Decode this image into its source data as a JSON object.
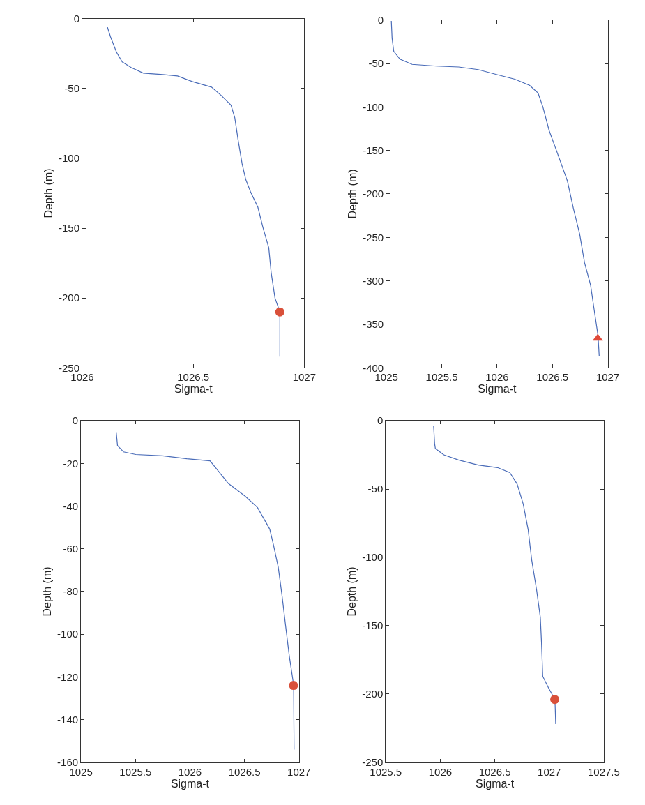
{
  "chart_data": [
    {
      "type": "line",
      "xlabel": "Sigma-t",
      "ylabel": "Depth (m)",
      "xlim": [
        1026,
        1027
      ],
      "xticks": [
        1026,
        1026.5,
        1027
      ],
      "ylim": [
        -250,
        0
      ],
      "yticks": [
        -250,
        -200,
        -150,
        -100,
        -50,
        0
      ],
      "series": [
        {
          "color": "#4a6cb8",
          "x": [
            1026.113,
            1026.127,
            1026.154,
            1026.18,
            1026.22,
            1026.275,
            1026.363,
            1026.429,
            1026.495,
            1026.582,
            1026.626,
            1026.67,
            1026.687,
            1026.703,
            1026.72,
            1026.736,
            1026.758,
            1026.791,
            1026.813,
            1026.84,
            1026.851,
            1026.868,
            1026.89,
            1026.89
          ],
          "values": [
            -6,
            -13,
            -24,
            -31,
            -35,
            -39,
            -40,
            -41,
            -45,
            -49,
            -55,
            -62,
            -71,
            -88,
            -104,
            -115,
            -124,
            -135,
            -149,
            -164,
            -182,
            -200,
            -210,
            -242
          ]
        },
        {
          "type": "scatter",
          "marker": "circle",
          "color": "#d9503a",
          "x": [
            1026.89
          ],
          "values": [
            -210
          ]
        }
      ]
    },
    {
      "type": "line",
      "xlabel": "Sigma-t",
      "ylabel": "Depth (m)",
      "xlim": [
        1025,
        1027
      ],
      "xticks": [
        1025,
        1025.5,
        1026,
        1026.5,
        1027
      ],
      "ylim": [
        -400,
        0
      ],
      "yticks": [
        -400,
        -350,
        -300,
        -250,
        -200,
        -150,
        -100,
        -50,
        0
      ],
      "series": [
        {
          "color": "#4a6cb8",
          "x": [
            1025.044,
            1025.051,
            1025.066,
            1025.122,
            1025.232,
            1025.453,
            1025.652,
            1025.829,
            1026.006,
            1026.16,
            1026.293,
            1026.37,
            1026.414,
            1026.47,
            1026.536,
            1026.635,
            1026.69,
            1026.746,
            1026.79,
            1026.845,
            1026.878,
            1026.912,
            1026.923
          ],
          "values": [
            -1,
            -21,
            -36,
            -45,
            -51,
            -53,
            -54,
            -57,
            -63,
            -68,
            -75,
            -84,
            -100,
            -127,
            -150,
            -185,
            -217,
            -246,
            -279,
            -305,
            -334,
            -363,
            -387
          ]
        },
        {
          "type": "scatter",
          "marker": "triangle",
          "color": "#e04a3a",
          "x": [
            1026.91
          ],
          "values": [
            -366
          ]
        }
      ]
    },
    {
      "type": "line",
      "xlabel": "Sigma-t",
      "ylabel": "Depth (m)",
      "xlim": [
        1025,
        1027
      ],
      "xticks": [
        1025,
        1025.5,
        1026,
        1026.5,
        1027
      ],
      "ylim": [
        -160,
        0
      ],
      "yticks": [
        -160,
        -140,
        -120,
        -100,
        -80,
        -60,
        -40,
        -20,
        0
      ],
      "series": [
        {
          "color": "#4a6cb8",
          "x": [
            1025.324,
            1025.335,
            1025.391,
            1025.503,
            1025.749,
            1025.972,
            1026.184,
            1026.24,
            1026.352,
            1026.508,
            1026.62,
            1026.732,
            1026.765,
            1026.81,
            1026.844,
            1026.877,
            1026.911,
            1026.951,
            1026.955
          ],
          "values": [
            -5.7,
            -11.6,
            -14.6,
            -15.8,
            -16.4,
            -17.8,
            -18.8,
            -22.3,
            -29.4,
            -35.4,
            -40.7,
            -50.8,
            -57.9,
            -68.6,
            -81.7,
            -95.9,
            -110.1,
            -123.8,
            -154
          ]
        },
        {
          "type": "scatter",
          "marker": "circle",
          "color": "#d9503a",
          "x": [
            1026.95
          ],
          "values": [
            -124
          ]
        }
      ]
    },
    {
      "type": "line",
      "xlabel": "Sigma-t",
      "ylabel": "Depth (m)",
      "xlim": [
        1025.5,
        1027.5
      ],
      "xticks": [
        1025.5,
        1026,
        1026.5,
        1027,
        1027.5
      ],
      "ylim": [
        -250,
        0
      ],
      "yticks": [
        -250,
        -200,
        -150,
        -100,
        -50,
        0
      ],
      "series": [
        {
          "color": "#4a6cb8",
          "x": [
            1025.939,
            1025.948,
            1025.955,
            1026.033,
            1026.167,
            1026.347,
            1026.526,
            1026.638,
            1026.705,
            1026.761,
            1026.806,
            1026.839,
            1026.884,
            1026.918,
            1026.929,
            1026.94,
            1026.996,
            1027.052,
            1027.059
          ],
          "values": [
            -3.7,
            -16.7,
            -20.4,
            -25,
            -28.7,
            -32.4,
            -34.3,
            -38,
            -46.3,
            -61,
            -79.6,
            -102,
            -124,
            -144,
            -163,
            -187,
            -196,
            -204,
            -222
          ]
        },
        {
          "type": "scatter",
          "marker": "circle",
          "color": "#d9503a",
          "x": [
            1027.05
          ],
          "values": [
            -204
          ]
        }
      ]
    }
  ]
}
